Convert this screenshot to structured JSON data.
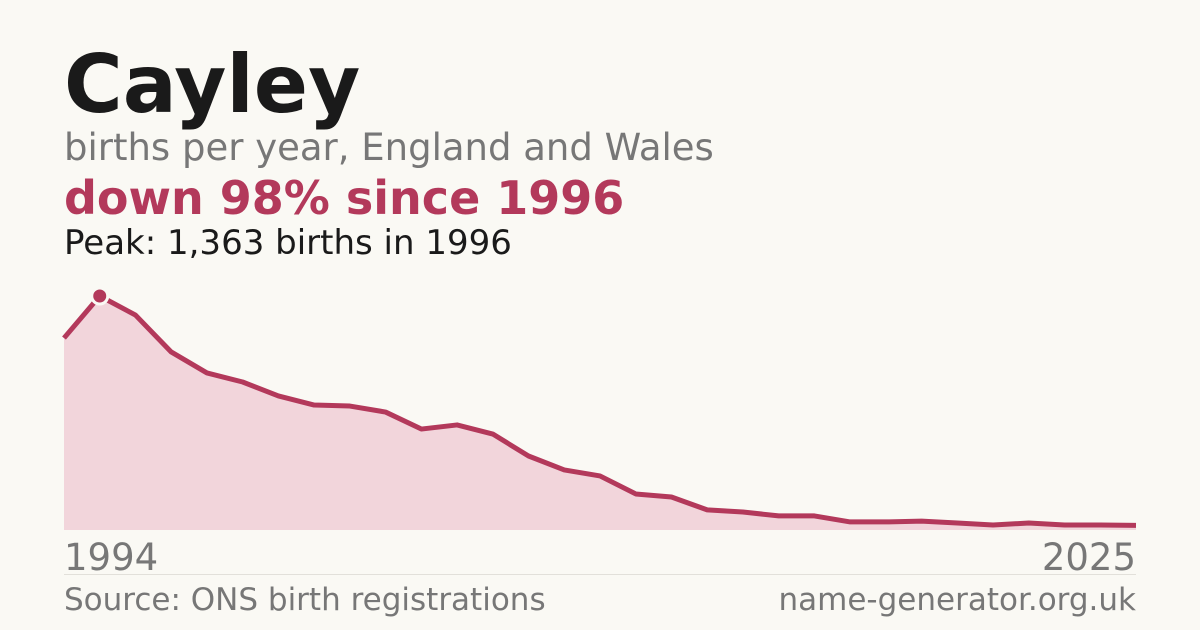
{
  "chart_data": {
    "type": "area",
    "title": "Cayley",
    "subtitle": "births per year, England and Wales",
    "headline": "down 98% since 1996",
    "annotation": "Peak: 1,363 births in 1996",
    "source": "Source: ONS birth registrations",
    "site": "name-generator.org.uk",
    "categories": [
      "1994",
      null,
      null,
      null,
      null,
      null,
      null,
      null,
      null,
      null,
      null,
      null,
      null,
      null,
      null,
      null,
      null,
      null,
      null,
      null,
      null,
      null,
      null,
      null,
      null,
      null,
      null,
      null,
      null,
      null,
      "2025"
    ],
    "values": [
      1118,
      1363,
      1252,
      1037,
      915,
      862,
      781,
      728,
      722,
      687,
      588,
      612,
      559,
      431,
      350,
      315,
      210,
      192,
      117,
      105,
      82,
      82,
      47,
      47,
      52,
      41,
      29,
      41,
      29,
      29,
      27
    ],
    "ylim": [
      0,
      1363
    ],
    "color": "#b3395b",
    "fill": "#f2d5db"
  }
}
